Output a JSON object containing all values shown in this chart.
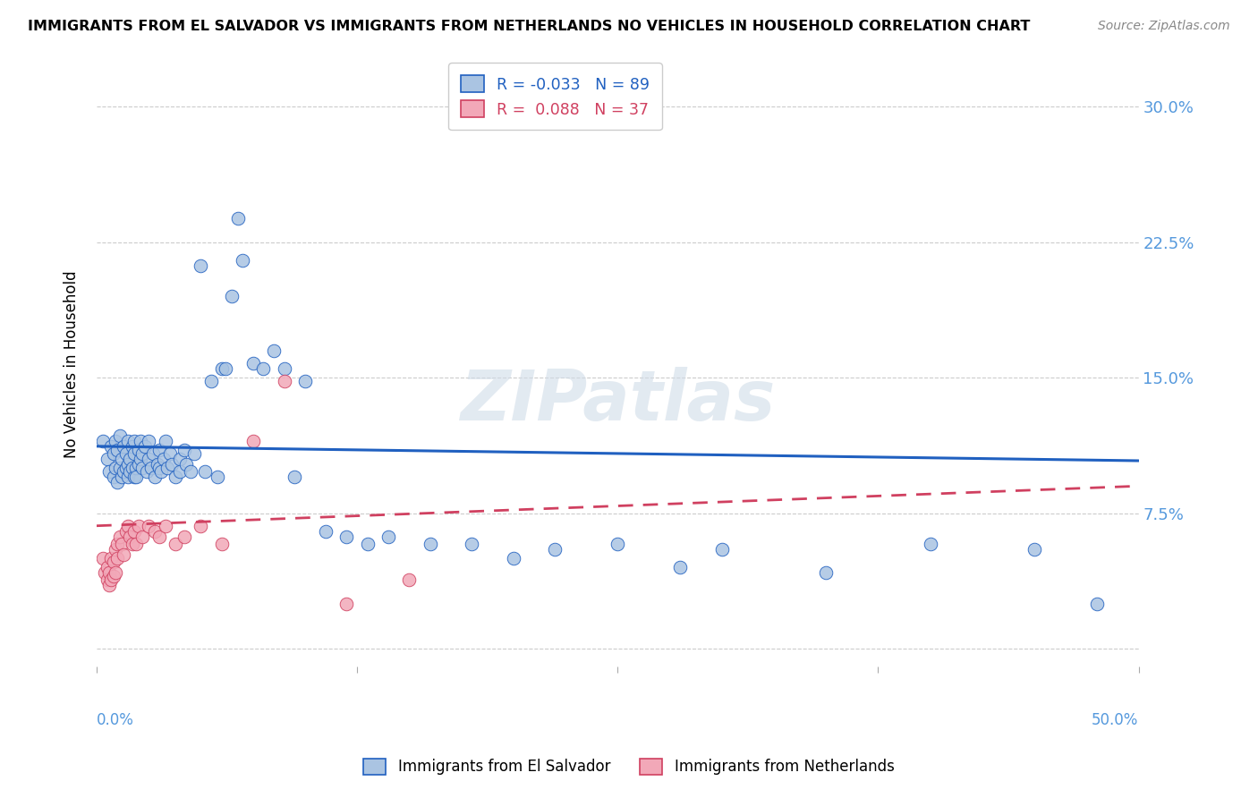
{
  "title": "IMMIGRANTS FROM EL SALVADOR VS IMMIGRANTS FROM NETHERLANDS NO VEHICLES IN HOUSEHOLD CORRELATION CHART",
  "source": "Source: ZipAtlas.com",
  "ylabel": "No Vehicles in Household",
  "yticks": [
    0.0,
    0.075,
    0.15,
    0.225,
    0.3
  ],
  "ytick_labels": [
    "",
    "7.5%",
    "15.0%",
    "22.5%",
    "30.0%"
  ],
  "xlim": [
    0.0,
    0.5
  ],
  "ylim": [
    -0.01,
    0.325
  ],
  "legend_blue_r": "-0.033",
  "legend_blue_n": "89",
  "legend_pink_r": "0.088",
  "legend_pink_n": "37",
  "color_blue": "#aac4e2",
  "color_pink": "#f2a8b8",
  "line_blue": "#2060c0",
  "line_pink": "#d04060",
  "watermark": "ZIPatlas",
  "blue_scatter_x": [
    0.003,
    0.005,
    0.006,
    0.007,
    0.008,
    0.008,
    0.009,
    0.009,
    0.01,
    0.01,
    0.011,
    0.011,
    0.012,
    0.012,
    0.013,
    0.013,
    0.014,
    0.014,
    0.015,
    0.015,
    0.015,
    0.016,
    0.016,
    0.017,
    0.017,
    0.018,
    0.018,
    0.018,
    0.019,
    0.019,
    0.02,
    0.02,
    0.021,
    0.021,
    0.022,
    0.022,
    0.023,
    0.024,
    0.025,
    0.025,
    0.026,
    0.027,
    0.028,
    0.029,
    0.03,
    0.03,
    0.031,
    0.032,
    0.033,
    0.034,
    0.035,
    0.036,
    0.038,
    0.04,
    0.04,
    0.042,
    0.043,
    0.045,
    0.047,
    0.05,
    0.052,
    0.055,
    0.058,
    0.06,
    0.062,
    0.065,
    0.068,
    0.07,
    0.075,
    0.08,
    0.085,
    0.09,
    0.095,
    0.1,
    0.11,
    0.12,
    0.13,
    0.14,
    0.16,
    0.18,
    0.2,
    0.22,
    0.25,
    0.28,
    0.3,
    0.35,
    0.4,
    0.45,
    0.48
  ],
  "blue_scatter_y": [
    0.115,
    0.105,
    0.098,
    0.112,
    0.095,
    0.108,
    0.1,
    0.115,
    0.092,
    0.11,
    0.1,
    0.118,
    0.095,
    0.105,
    0.098,
    0.112,
    0.1,
    0.108,
    0.095,
    0.102,
    0.115,
    0.098,
    0.105,
    0.1,
    0.112,
    0.095,
    0.108,
    0.115,
    0.1,
    0.095,
    0.102,
    0.11,
    0.105,
    0.115,
    0.1,
    0.108,
    0.112,
    0.098,
    0.105,
    0.115,
    0.1,
    0.108,
    0.095,
    0.102,
    0.11,
    0.1,
    0.098,
    0.105,
    0.115,
    0.1,
    0.108,
    0.102,
    0.095,
    0.105,
    0.098,
    0.11,
    0.102,
    0.098,
    0.108,
    0.212,
    0.098,
    0.148,
    0.095,
    0.155,
    0.155,
    0.195,
    0.238,
    0.215,
    0.158,
    0.155,
    0.165,
    0.155,
    0.095,
    0.148,
    0.065,
    0.062,
    0.058,
    0.062,
    0.058,
    0.058,
    0.05,
    0.055,
    0.058,
    0.045,
    0.055,
    0.042,
    0.058,
    0.055,
    0.025
  ],
  "pink_scatter_x": [
    0.003,
    0.004,
    0.005,
    0.005,
    0.006,
    0.006,
    0.007,
    0.007,
    0.008,
    0.008,
    0.009,
    0.009,
    0.01,
    0.01,
    0.011,
    0.012,
    0.013,
    0.014,
    0.015,
    0.016,
    0.017,
    0.018,
    0.019,
    0.02,
    0.022,
    0.025,
    0.028,
    0.03,
    0.033,
    0.038,
    0.042,
    0.05,
    0.06,
    0.075,
    0.09,
    0.12,
    0.15
  ],
  "pink_scatter_y": [
    0.05,
    0.042,
    0.038,
    0.045,
    0.035,
    0.042,
    0.038,
    0.05,
    0.04,
    0.048,
    0.042,
    0.055,
    0.058,
    0.05,
    0.062,
    0.058,
    0.052,
    0.065,
    0.068,
    0.062,
    0.058,
    0.065,
    0.058,
    0.068,
    0.062,
    0.068,
    0.065,
    0.062,
    0.068,
    0.058,
    0.062,
    0.068,
    0.058,
    0.115,
    0.148,
    0.025,
    0.038
  ],
  "blue_line_x": [
    0.0,
    0.5
  ],
  "blue_line_y": [
    0.112,
    0.104
  ],
  "pink_line_x": [
    0.0,
    0.5
  ],
  "pink_line_y": [
    0.068,
    0.09
  ]
}
